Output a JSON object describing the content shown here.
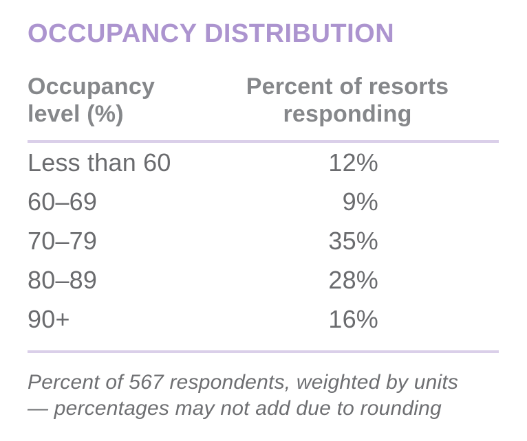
{
  "title": "OCCUPANCY DISTRIBUTION",
  "table": {
    "header": {
      "level_lines": [
        "Occupancy",
        "level (%)"
      ],
      "percent_lines": [
        "Percent of resorts",
        "responding"
      ]
    },
    "rows": [
      {
        "level": "Less than 60",
        "percent": "12%"
      },
      {
        "level": "60–69",
        "percent": "9%"
      },
      {
        "level": "70–79",
        "percent": "35%"
      },
      {
        "level": "80–89",
        "percent": "28%"
      },
      {
        "level": "90+",
        "percent": "16%"
      }
    ]
  },
  "footnote": {
    "lines": [
      "Percent of 567 respondents, weighted by units",
      "— percentages may not add due to rounding"
    ]
  },
  "colors": {
    "title_text": "#AC94CF",
    "divider": "#DACFE9",
    "header_text": "#85878A",
    "body_text": "#6A6B6E",
    "footnote_text": "#6E6F72",
    "background": "#FFFFFF"
  },
  "chart_data": {
    "type": "table",
    "title": "OCCUPANCY DISTRIBUTION",
    "columns": [
      "Occupancy level (%)",
      "Percent of resorts responding"
    ],
    "categories": [
      "Less than 60",
      "60–69",
      "70–79",
      "80–89",
      "90+"
    ],
    "values": [
      12,
      9,
      35,
      28,
      16
    ],
    "value_unit": "%",
    "footnote": "Percent of 567 respondents, weighted by units — percentages may not add due to rounding"
  }
}
